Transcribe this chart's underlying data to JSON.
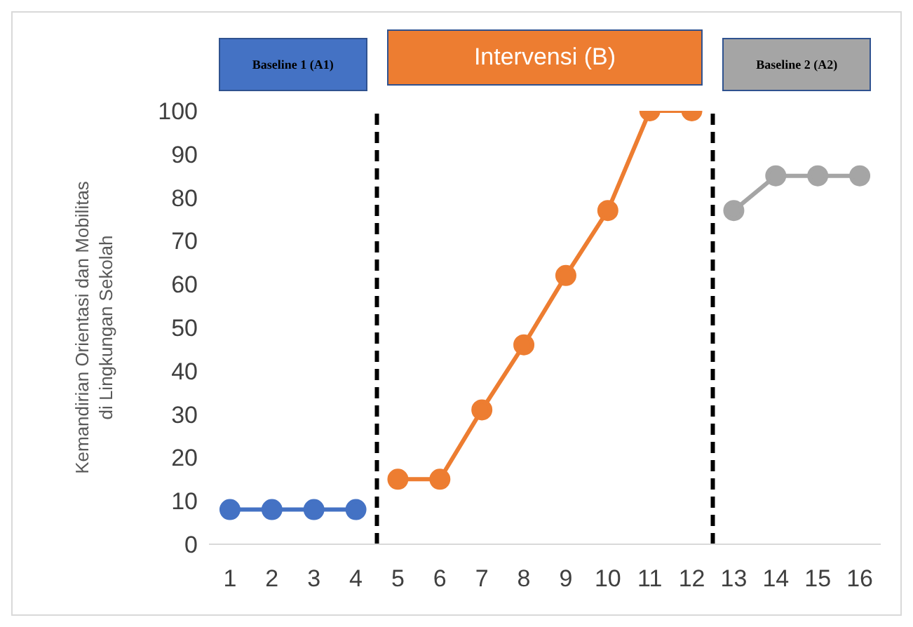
{
  "chart_data": {
    "type": "line",
    "ylabel": "Kemandirian Orientasi dan Mobilitas\ndi Lingkungan Sekolah",
    "xlim": [
      0.5,
      16.5
    ],
    "xticks": [
      1,
      2,
      3,
      4,
      5,
      6,
      7,
      8,
      9,
      10,
      11,
      12,
      13,
      14,
      15,
      16
    ],
    "ylim": [
      0,
      100
    ],
    "yticks": [
      0,
      10,
      20,
      30,
      40,
      50,
      60,
      70,
      80,
      90,
      100
    ],
    "grid": false,
    "legend": false,
    "marker": "circle",
    "line_style": "solid",
    "series": [
      {
        "color": "#4472c4",
        "x": [
          1,
          2,
          3,
          4
        ],
        "values": [
          8,
          8,
          8,
          8
        ]
      },
      {
        "color": "#ed7d31",
        "x": [
          5,
          6,
          7,
          8,
          9,
          10,
          11,
          12
        ],
        "values": [
          15,
          15,
          31,
          46,
          62,
          77,
          100,
          100
        ]
      },
      {
        "color": "#a5a5a5",
        "x": [
          13,
          14,
          15,
          16
        ],
        "values": [
          77,
          85,
          85,
          85
        ]
      }
    ],
    "annotations": [
      "Baseline 1 (A1)",
      "Intervensi (B)",
      "Baseline 2 (A2)"
    ],
    "ref_lines": [
      {
        "axis": "x",
        "value": 4.5,
        "color": "#000000",
        "line_style": "dashed"
      },
      {
        "axis": "x",
        "value": 12.5,
        "color": "#000000",
        "line_style": "dashed"
      }
    ]
  }
}
